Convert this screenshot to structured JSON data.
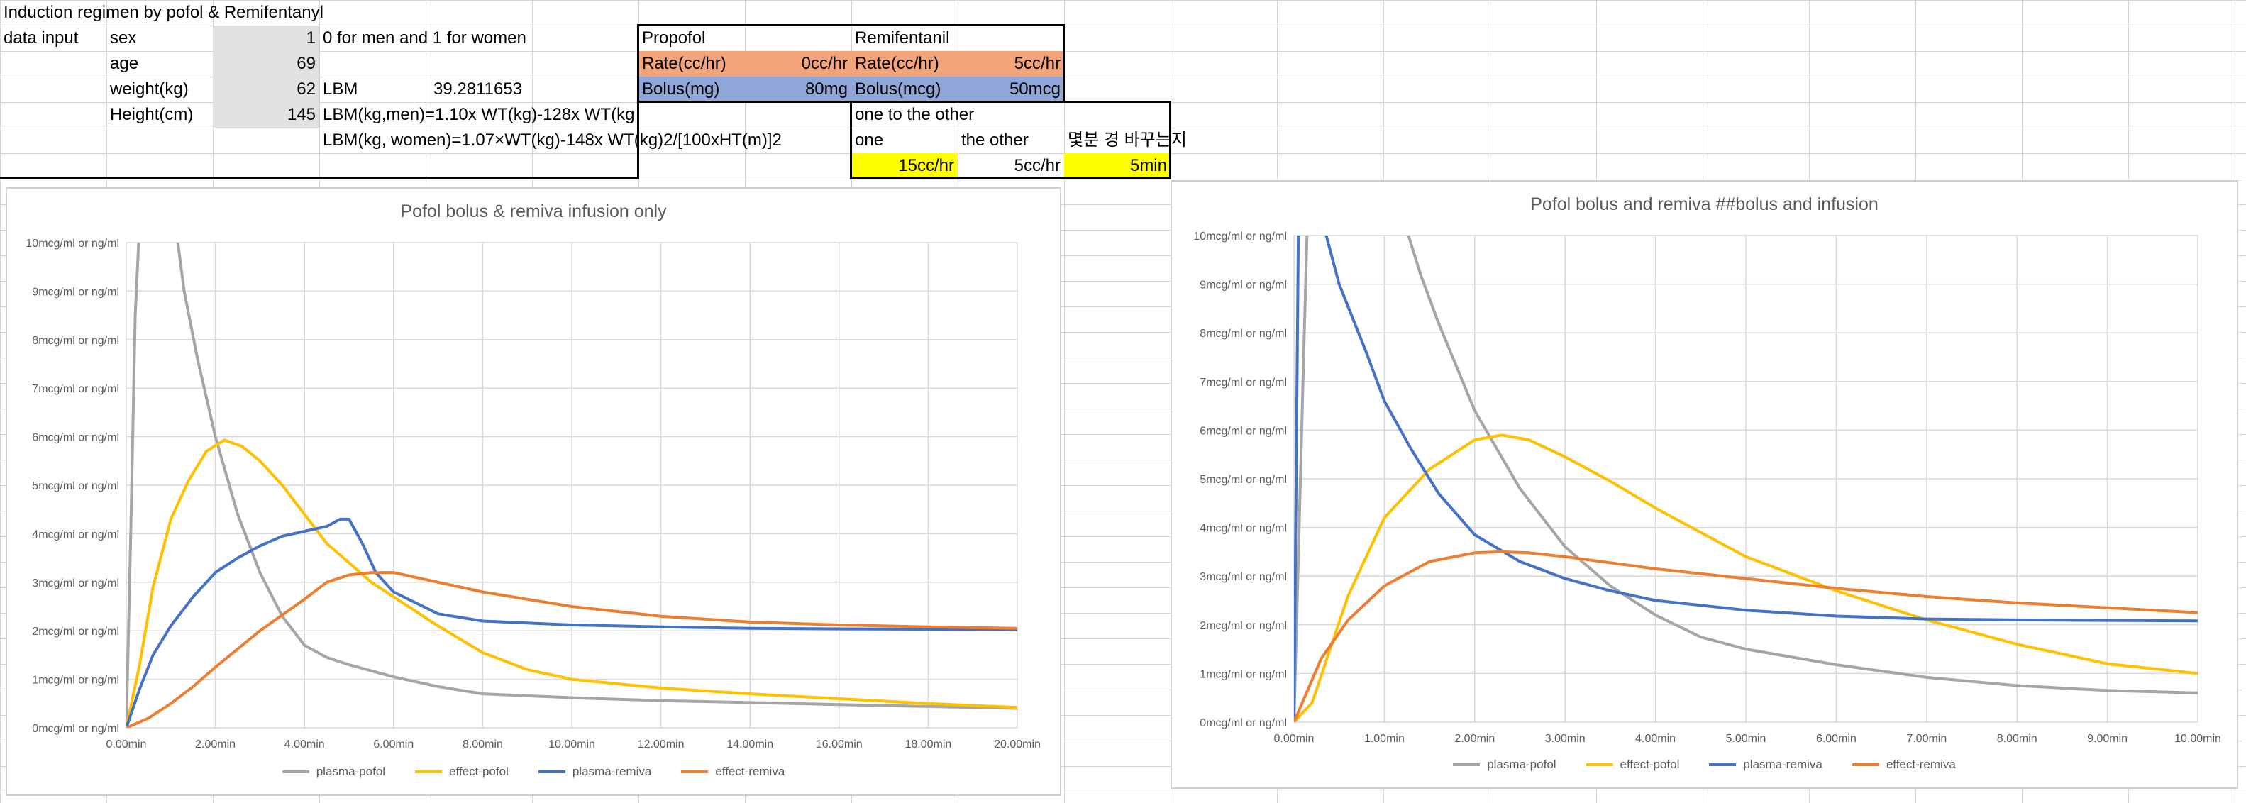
{
  "sheet": {
    "title": "Induction regimen by pofol & Remifentanyl",
    "data_input_label": "data input",
    "sex_label": "sex",
    "sex_value": "1",
    "sex_note": "0 for men and 1 for women",
    "age_label": "age",
    "age_value": "69",
    "weight_label": "weight(kg)",
    "weight_value": "62",
    "lbm_label": "LBM",
    "lbm_value": "39.2811653",
    "height_label": "Height(cm)",
    "height_value": "145",
    "lbm_men_formula": "LBM(kg,men)=1.10x WT(kg)-128x WT(kg",
    "lbm_women_formula": "LBM(kg, women)=1.07×WT(kg)-148x WT(kg)2/[100xHT(m)]2"
  },
  "drugs": {
    "propofol_header": "Propofol",
    "remifentanil_header": "Remifentanil",
    "propofol_rate_label": "Rate(cc/hr)",
    "propofol_rate_value": "0cc/hr",
    "remi_rate_label": "Rate(cc/hr)",
    "remi_rate_value": "5cc/hr",
    "propofol_bolus_label": "Bolus(mg)",
    "propofol_bolus_value": "80mg",
    "remi_bolus_label": "Bolus(mcg)",
    "remi_bolus_value": "50mcg"
  },
  "switch": {
    "header": "one to the other",
    "one_label": "one",
    "other_label": "the other",
    "when_label": "몇분 경 바꾸는지",
    "one_value": "15cc/hr",
    "other_value": "5cc/hr",
    "when_value": "5min"
  },
  "colors": {
    "plasma_pofol": "#a5a5a5",
    "effect_pofol": "#ffc000",
    "plasma_remiva": "#4472c4",
    "effect_remiva": "#ed7d31"
  },
  "chart_data": [
    {
      "type": "line",
      "title": "Pofol bolus & remiva infusion only",
      "y_tick_labels": [
        "0mcg/ml or ng/ml",
        "1mcg/ml or ng/ml",
        "2mcg/ml or ng/ml",
        "3mcg/ml or ng/ml",
        "4mcg/ml or ng/ml",
        "5mcg/ml or ng/ml",
        "6mcg/ml or ng/ml",
        "7mcg/ml or ng/ml",
        "8mcg/ml or ng/ml",
        "9mcg/ml or ng/ml",
        "10mcg/ml or ng/ml"
      ],
      "x_tick_labels": [
        "0.00min",
        "2.00min",
        "4.00min",
        "6.00min",
        "8.00min",
        "10.00min",
        "12.00min",
        "14.00min",
        "16.00min",
        "18.00min",
        "20.00min"
      ],
      "xlim": [
        0,
        20
      ],
      "ylim": [
        0,
        10
      ],
      "grid": true,
      "legend": "bottom",
      "series": [
        {
          "name": "plasma-pofol",
          "color_key": "plasma_pofol",
          "x": [
            0,
            0.1,
            0.2,
            0.3,
            1.1,
            1.3,
            1.6,
            2.0,
            2.5,
            3.0,
            3.5,
            4.0,
            4.5,
            5.0,
            6.0,
            7.0,
            8.0,
            10.0,
            12.0,
            14.0,
            16.0,
            18.0,
            20.0
          ],
          "y": [
            0,
            4.0,
            8.5,
            10.4,
            10.4,
            9.0,
            7.6,
            6.0,
            4.4,
            3.2,
            2.3,
            1.7,
            1.45,
            1.3,
            1.05,
            0.85,
            0.7,
            0.62,
            0.56,
            0.52,
            0.48,
            0.44,
            0.4
          ]
        },
        {
          "name": "effect-pofol",
          "color_key": "effect_pofol",
          "x": [
            0,
            0.3,
            0.6,
            1.0,
            1.4,
            1.8,
            2.2,
            2.6,
            3.0,
            3.5,
            4.0,
            4.5,
            5.0,
            5.5,
            6.0,
            7.0,
            8.0,
            9.0,
            10.0,
            12.0,
            14.0,
            16.0,
            18.0,
            20.0
          ],
          "y": [
            0,
            1.3,
            2.9,
            4.3,
            5.1,
            5.7,
            5.93,
            5.8,
            5.5,
            5.0,
            4.4,
            3.8,
            3.4,
            3.0,
            2.7,
            2.1,
            1.55,
            1.2,
            1.0,
            0.82,
            0.7,
            0.6,
            0.5,
            0.42
          ]
        },
        {
          "name": "plasma-remiva",
          "color_key": "plasma_remiva",
          "x": [
            0,
            0.3,
            0.6,
            1.0,
            1.5,
            2.0,
            2.5,
            3.0,
            3.5,
            4.0,
            4.5,
            4.8,
            5.0,
            5.3,
            5.6,
            6.0,
            7.0,
            8.0,
            10.0,
            12.0,
            14.0,
            16.0,
            18.0,
            20.0
          ],
          "y": [
            0,
            0.8,
            1.5,
            2.1,
            2.7,
            3.2,
            3.5,
            3.75,
            3.95,
            4.05,
            4.15,
            4.3,
            4.3,
            3.8,
            3.2,
            2.8,
            2.35,
            2.2,
            2.12,
            2.08,
            2.05,
            2.04,
            2.03,
            2.02
          ]
        },
        {
          "name": "effect-remiva",
          "color_key": "effect_remiva",
          "x": [
            0,
            0.5,
            1.0,
            1.5,
            2.0,
            3.0,
            4.0,
            4.5,
            5.0,
            5.5,
            6.0,
            7.0,
            8.0,
            10.0,
            12.0,
            14.0,
            16.0,
            18.0,
            20.0
          ],
          "y": [
            0,
            0.2,
            0.5,
            0.85,
            1.25,
            2.0,
            2.65,
            3.0,
            3.15,
            3.2,
            3.2,
            3.0,
            2.8,
            2.5,
            2.3,
            2.18,
            2.12,
            2.08,
            2.05
          ]
        }
      ]
    },
    {
      "type": "line",
      "title": "Pofol bolus and remiva ##bolus and infusion",
      "y_tick_labels": [
        "0mcg/ml or ng/ml",
        "1mcg/ml or ng/ml",
        "2mcg/ml or ng/ml",
        "3mcg/ml or ng/ml",
        "4mcg/ml or ng/ml",
        "5mcg/ml or ng/ml",
        "6mcg/ml or ng/ml",
        "7mcg/ml or ng/ml",
        "8mcg/ml or ng/ml",
        "9mcg/ml or ng/ml",
        "10mcg/ml or ng/ml"
      ],
      "x_tick_labels": [
        "0.00min",
        "1.00min",
        "2.00min",
        "3.00min",
        "4.00min",
        "5.00min",
        "6.00min",
        "7.00min",
        "8.00min",
        "9.00min",
        "10.00min"
      ],
      "xlim": [
        0,
        10
      ],
      "ylim": [
        0,
        10
      ],
      "grid": true,
      "legend": "bottom",
      "series": [
        {
          "name": "plasma-pofol",
          "color_key": "plasma_pofol",
          "x": [
            0,
            0.05,
            0.1,
            0.15,
            1.2,
            1.4,
            1.6,
            1.8,
            2.0,
            2.5,
            3.0,
            3.5,
            4.0,
            4.5,
            5.0,
            6.0,
            7.0,
            8.0,
            9.0,
            10.0
          ],
          "y": [
            0,
            3.5,
            7.0,
            10.4,
            10.4,
            9.2,
            8.2,
            7.3,
            6.4,
            4.8,
            3.6,
            2.8,
            2.2,
            1.75,
            1.5,
            1.18,
            0.92,
            0.75,
            0.65,
            0.6
          ]
        },
        {
          "name": "effect-pofol",
          "color_key": "effect_pofol",
          "x": [
            0,
            0.2,
            0.4,
            0.6,
            1.0,
            1.5,
            2.0,
            2.3,
            2.6,
            3.0,
            3.5,
            4.0,
            5.0,
            6.0,
            7.0,
            8.0,
            9.0,
            10.0
          ],
          "y": [
            0,
            0.4,
            1.5,
            2.6,
            4.2,
            5.2,
            5.8,
            5.9,
            5.8,
            5.45,
            4.95,
            4.4,
            3.4,
            2.7,
            2.1,
            1.6,
            1.2,
            1.0
          ]
        },
        {
          "name": "plasma-remiva",
          "color_key": "plasma_remiva",
          "x": [
            0,
            0.05,
            0.1,
            0.3,
            0.5,
            0.8,
            1.0,
            1.3,
            1.6,
            2.0,
            2.5,
            3.0,
            3.5,
            4.0,
            5.0,
            6.0,
            7.0,
            8.0,
            9.0,
            10.0
          ],
          "y": [
            0,
            10.4,
            10.4,
            10.4,
            9.0,
            7.6,
            6.6,
            5.6,
            4.7,
            3.85,
            3.3,
            2.95,
            2.7,
            2.5,
            2.3,
            2.18,
            2.12,
            2.1,
            2.09,
            2.08
          ]
        },
        {
          "name": "effect-remiva",
          "color_key": "effect_remiva",
          "x": [
            0,
            0.3,
            0.6,
            1.0,
            1.5,
            2.0,
            2.3,
            2.6,
            3.0,
            4.0,
            5.0,
            6.0,
            7.0,
            8.0,
            9.0,
            10.0
          ],
          "y": [
            0,
            1.3,
            2.1,
            2.8,
            3.3,
            3.48,
            3.5,
            3.48,
            3.4,
            3.15,
            2.95,
            2.75,
            2.58,
            2.45,
            2.35,
            2.25
          ]
        }
      ]
    }
  ]
}
